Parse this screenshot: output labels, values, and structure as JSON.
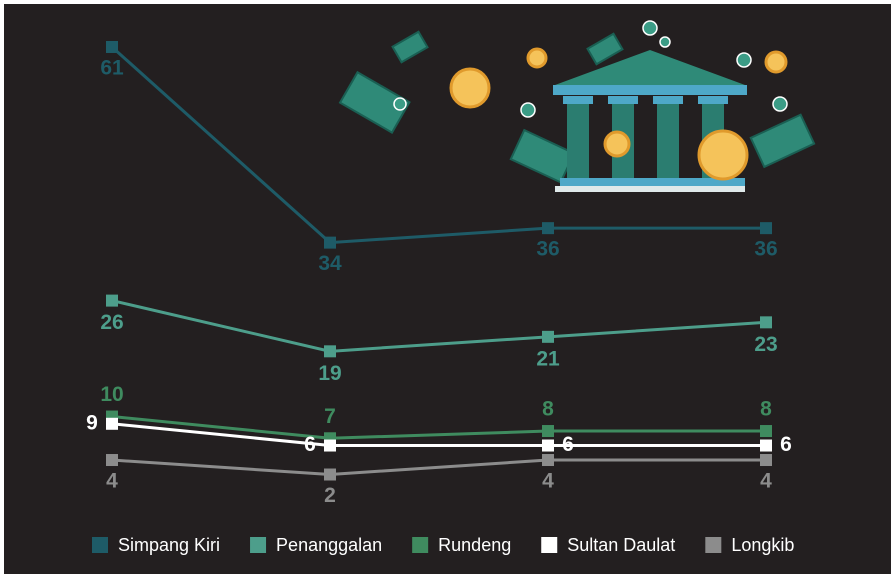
{
  "chart_data": {
    "type": "line",
    "categories": [
      null,
      null,
      null,
      null
    ],
    "ylim": [
      0,
      65
    ],
    "series": [
      {
        "name": "Simpang Kiri",
        "color": "#1e5b67",
        "values": [
          61,
          34,
          36,
          36
        ]
      },
      {
        "name": "Penanggalan",
        "color": "#4d9e8b",
        "values": [
          26,
          19,
          21,
          23
        ]
      },
      {
        "name": "Rundeng",
        "color": "#3f8b5f",
        "values": [
          10,
          7,
          8,
          8
        ]
      },
      {
        "name": "Sultan Daulat",
        "color": "#ffffff",
        "values": [
          9,
          6,
          6,
          6
        ]
      },
      {
        "name": "Longkib",
        "color": "#8c8c8c",
        "values": [
          4,
          2,
          4,
          4
        ]
      }
    ]
  }
}
